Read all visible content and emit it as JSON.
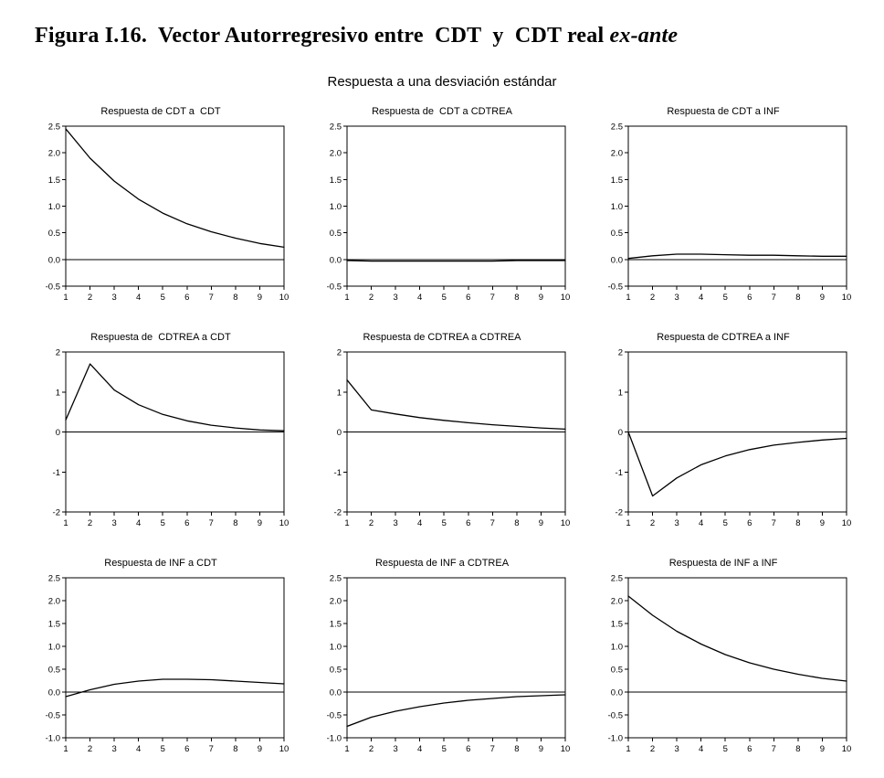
{
  "figure": {
    "title_main": "Figura I.16.  Vector Autorregresivo entre  CDT  y  CDT real",
    "title_italic": "ex-ante",
    "subtitle": "Respuesta a una desviación estándar"
  },
  "colors": {
    "line": "#000000",
    "text": "#000000",
    "background": "#ffffff"
  },
  "chart_data": [
    {
      "type": "line",
      "title": "Respuesta de CDT a  CDT",
      "x": [
        1,
        2,
        3,
        4,
        5,
        6,
        7,
        8,
        9,
        10
      ],
      "values": [
        2.45,
        1.9,
        1.47,
        1.13,
        0.87,
        0.67,
        0.52,
        0.4,
        0.3,
        0.23
      ],
      "xlim": [
        1,
        10
      ],
      "ylim": [
        -0.5,
        2.5
      ],
      "ytick_values": [
        2.5,
        2.0,
        1.5,
        1.0,
        0.5,
        0.0,
        -0.5
      ],
      "ytick_labels": [
        "2.5",
        "2.0",
        "1.5",
        "1.0",
        "0.5",
        "0.0",
        "-0.5"
      ],
      "zero_line": true,
      "grid": false
    },
    {
      "type": "line",
      "title": "Respuesta de  CDT a CDTREA",
      "x": [
        1,
        2,
        3,
        4,
        5,
        6,
        7,
        8,
        9,
        10
      ],
      "values": [
        -0.02,
        -0.03,
        -0.03,
        -0.03,
        -0.03,
        -0.03,
        -0.03,
        -0.02,
        -0.02,
        -0.02
      ],
      "xlim": [
        1,
        10
      ],
      "ylim": [
        -0.5,
        2.5
      ],
      "ytick_values": [
        2.5,
        2.0,
        1.5,
        1.0,
        0.5,
        0.0,
        -0.5
      ],
      "ytick_labels": [
        "2.5",
        "2.0",
        "1.5",
        "1.0",
        "0.5",
        "0.0",
        "-0.5"
      ],
      "zero_line": true,
      "grid": false
    },
    {
      "type": "line",
      "title": "Respuesta de CDT a INF",
      "x": [
        1,
        2,
        3,
        4,
        5,
        6,
        7,
        8,
        9,
        10
      ],
      "values": [
        0.02,
        0.07,
        0.1,
        0.1,
        0.09,
        0.08,
        0.08,
        0.07,
        0.06,
        0.06
      ],
      "xlim": [
        1,
        10
      ],
      "ylim": [
        -0.5,
        2.5
      ],
      "ytick_values": [
        2.5,
        2.0,
        1.5,
        1.0,
        0.5,
        0.0,
        -0.5
      ],
      "ytick_labels": [
        "2.5",
        "2.0",
        "1.5",
        "1.0",
        "0.5",
        "0.0",
        "-0.5"
      ],
      "zero_line": true,
      "grid": false
    },
    {
      "type": "line",
      "title": "Respuesta de  CDTREA a CDT",
      "x": [
        1,
        2,
        3,
        4,
        5,
        6,
        7,
        8,
        9,
        10
      ],
      "values": [
        0.3,
        1.7,
        1.05,
        0.68,
        0.44,
        0.28,
        0.17,
        0.1,
        0.05,
        0.03
      ],
      "xlim": [
        1,
        10
      ],
      "ylim": [
        -2,
        2
      ],
      "ytick_values": [
        2,
        1,
        0,
        -1,
        -2
      ],
      "ytick_labels": [
        "2",
        "1",
        "0",
        "-1",
        "-2"
      ],
      "zero_line": true,
      "grid": false
    },
    {
      "type": "line",
      "title": "Respuesta de CDTREA a CDTREA",
      "x": [
        1,
        2,
        3,
        4,
        5,
        6,
        7,
        8,
        9,
        10
      ],
      "values": [
        1.3,
        0.55,
        0.45,
        0.36,
        0.29,
        0.23,
        0.18,
        0.14,
        0.1,
        0.07
      ],
      "xlim": [
        1,
        10
      ],
      "ylim": [
        -2,
        2
      ],
      "ytick_values": [
        2,
        1,
        0,
        -1,
        -2
      ],
      "ytick_labels": [
        "2",
        "1",
        "0",
        "-1",
        "-2"
      ],
      "zero_line": true,
      "grid": false
    },
    {
      "type": "line",
      "title": "Respuesta de CDTREA a INF",
      "x": [
        1,
        2,
        3,
        4,
        5,
        6,
        7,
        8,
        9,
        10
      ],
      "values": [
        0.0,
        -1.6,
        -1.15,
        -0.82,
        -0.6,
        -0.44,
        -0.33,
        -0.26,
        -0.2,
        -0.16
      ],
      "xlim": [
        1,
        10
      ],
      "ylim": [
        -2,
        2
      ],
      "ytick_values": [
        2,
        1,
        0,
        -1,
        -2
      ],
      "ytick_labels": [
        "2",
        "1",
        "0",
        "-1",
        "-2"
      ],
      "zero_line": true,
      "grid": false
    },
    {
      "type": "line",
      "title": "Respuesta de INF a CDT",
      "x": [
        1,
        2,
        3,
        4,
        5,
        6,
        7,
        8,
        9,
        10
      ],
      "values": [
        -0.1,
        0.05,
        0.17,
        0.24,
        0.28,
        0.28,
        0.27,
        0.24,
        0.21,
        0.18
      ],
      "xlim": [
        1,
        10
      ],
      "ylim": [
        -1.0,
        2.5
      ],
      "ytick_values": [
        2.5,
        2.0,
        1.5,
        1.0,
        0.5,
        0.0,
        -0.5,
        -1.0
      ],
      "ytick_labels": [
        "2.5",
        "2.0",
        "1.5",
        "1.0",
        "0.5",
        "0.0",
        "-0.5",
        "-1.0"
      ],
      "zero_line": true,
      "grid": false
    },
    {
      "type": "line",
      "title": "Respuesta de INF a CDTREA",
      "x": [
        1,
        2,
        3,
        4,
        5,
        6,
        7,
        8,
        9,
        10
      ],
      "values": [
        -0.75,
        -0.55,
        -0.42,
        -0.32,
        -0.24,
        -0.18,
        -0.14,
        -0.1,
        -0.08,
        -0.06
      ],
      "xlim": [
        1,
        10
      ],
      "ylim": [
        -1.0,
        2.5
      ],
      "ytick_values": [
        2.5,
        2.0,
        1.5,
        1.0,
        0.5,
        0.0,
        -0.5,
        -1.0
      ],
      "ytick_labels": [
        "2.5",
        "2.0",
        "1.5",
        "1.0",
        "0.5",
        "0.0",
        "-0.5",
        "-1.0"
      ],
      "zero_line": true,
      "grid": false
    },
    {
      "type": "line",
      "title": "Respuesta de INF a INF",
      "x": [
        1,
        2,
        3,
        4,
        5,
        6,
        7,
        8,
        9,
        10
      ],
      "values": [
        2.1,
        1.68,
        1.33,
        1.05,
        0.82,
        0.64,
        0.5,
        0.39,
        0.3,
        0.24
      ],
      "xlim": [
        1,
        10
      ],
      "ylim": [
        -1.0,
        2.5
      ],
      "ytick_values": [
        2.5,
        2.0,
        1.5,
        1.0,
        0.5,
        0.0,
        -0.5,
        -1.0
      ],
      "ytick_labels": [
        "2.5",
        "2.0",
        "1.5",
        "1.0",
        "0.5",
        "0.0",
        "-0.5",
        "-1.0"
      ],
      "zero_line": true,
      "grid": false
    }
  ]
}
